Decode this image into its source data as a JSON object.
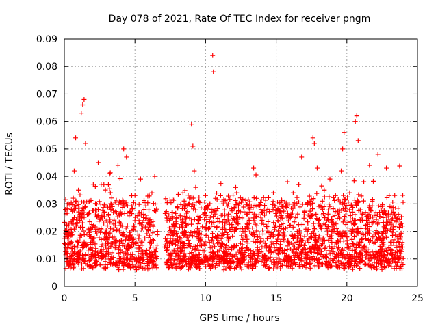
{
  "chart_data": {
    "type": "scatter",
    "title": "Day 078 of 2021, Rate Of TEC Index for receiver pngm",
    "xlabel": "GPS time / hours",
    "ylabel": "ROTI / TECUs",
    "xlim": [
      0,
      25
    ],
    "ylim": [
      0,
      0.09
    ],
    "grid": true,
    "x_ticks": [
      0,
      5,
      10,
      15,
      20,
      25
    ],
    "x_tick_labels": [
      "0",
      "5",
      "10",
      "15",
      "20",
      "25"
    ],
    "y_ticks": [
      0,
      0.01,
      0.02,
      0.03,
      0.04,
      0.05,
      0.06,
      0.07,
      0.08,
      0.09
    ],
    "y_tick_labels": [
      "0",
      "0.01",
      "0.02",
      "0.03",
      "0.04",
      "0.05",
      "0.06",
      "0.07",
      "0.08",
      "0.09"
    ],
    "marker": "+",
    "color": "#ff0000",
    "series": [
      {
        "name": "ROTI",
        "points": [
          [
            0.1,
            0.018
          ],
          [
            0.2,
            0.012
          ],
          [
            0.3,
            0.022
          ],
          [
            0.4,
            0.009
          ],
          [
            0.5,
            0.028
          ],
          [
            0.6,
            0.015
          ],
          [
            0.7,
            0.042
          ],
          [
            0.8,
            0.054
          ],
          [
            0.9,
            0.011
          ],
          [
            1.0,
            0.035
          ],
          [
            1.1,
            0.024
          ],
          [
            1.2,
            0.063
          ],
          [
            1.3,
            0.066
          ],
          [
            1.4,
            0.068
          ],
          [
            1.5,
            0.052
          ],
          [
            1.6,
            0.019
          ],
          [
            1.8,
            0.031
          ],
          [
            2.0,
            0.013
          ],
          [
            2.2,
            0.026
          ],
          [
            2.4,
            0.045
          ],
          [
            2.6,
            0.021
          ],
          [
            2.8,
            0.037
          ],
          [
            3.0,
            0.017
          ],
          [
            3.2,
            0.041
          ],
          [
            3.4,
            0.029
          ],
          [
            3.6,
            0.014
          ],
          [
            3.8,
            0.044
          ],
          [
            4.0,
            0.023
          ],
          [
            4.2,
            0.05
          ],
          [
            4.4,
            0.047
          ],
          [
            4.6,
            0.027
          ],
          [
            4.8,
            0.016
          ],
          [
            5.0,
            0.033
          ],
          [
            5.2,
            0.019
          ],
          [
            5.4,
            0.039
          ],
          [
            5.6,
            0.025
          ],
          [
            5.8,
            0.012
          ],
          [
            6.0,
            0.022
          ],
          [
            6.2,
            0.034
          ],
          [
            6.4,
            0.04
          ],
          [
            7.2,
            0.015
          ],
          [
            7.4,
            0.026
          ],
          [
            7.6,
            0.011
          ],
          [
            7.8,
            0.019
          ],
          [
            8.0,
            0.029
          ],
          [
            8.2,
            0.014
          ],
          [
            8.4,
            0.034
          ],
          [
            8.6,
            0.022
          ],
          [
            8.8,
            0.03
          ],
          [
            9.0,
            0.059
          ],
          [
            9.1,
            0.051
          ],
          [
            9.2,
            0.042
          ],
          [
            9.3,
            0.036
          ],
          [
            9.4,
            0.018
          ],
          [
            9.6,
            0.025
          ],
          [
            9.8,
            0.013
          ],
          [
            10.0,
            0.033
          ],
          [
            10.2,
            0.021
          ],
          [
            10.4,
            0.028
          ],
          [
            10.5,
            0.084
          ],
          [
            10.55,
            0.078
          ],
          [
            10.7,
            0.032
          ],
          [
            10.9,
            0.016
          ],
          [
            11.2,
            0.026
          ],
          [
            11.4,
            0.012
          ],
          [
            11.6,
            0.03
          ],
          [
            11.8,
            0.02
          ],
          [
            12.0,
            0.014
          ],
          [
            12.2,
            0.034
          ],
          [
            12.4,
            0.025
          ],
          [
            12.6,
            0.009
          ],
          [
            12.8,
            0.021
          ],
          [
            13.0,
            0.03
          ],
          [
            13.2,
            0.013
          ],
          [
            13.4,
            0.043
          ],
          [
            13.6,
            0.032
          ],
          [
            13.8,
            0.019
          ],
          [
            14.0,
            0.024
          ],
          [
            14.2,
            0.011
          ],
          [
            14.4,
            0.028
          ],
          [
            14.6,
            0.018
          ],
          [
            14.8,
            0.034
          ],
          [
            15.0,
            0.014
          ],
          [
            15.2,
            0.022
          ],
          [
            15.4,
            0.029
          ],
          [
            15.6,
            0.012
          ],
          [
            15.8,
            0.038
          ],
          [
            16.0,
            0.025
          ],
          [
            16.2,
            0.034
          ],
          [
            16.4,
            0.016
          ],
          [
            16.6,
            0.037
          ],
          [
            16.8,
            0.047
          ],
          [
            17.0,
            0.027
          ],
          [
            17.2,
            0.019
          ],
          [
            17.4,
            0.031
          ],
          [
            17.6,
            0.054
          ],
          [
            17.7,
            0.052
          ],
          [
            17.9,
            0.043
          ],
          [
            18.0,
            0.024
          ],
          [
            18.2,
            0.015
          ],
          [
            18.4,
            0.029
          ],
          [
            18.6,
            0.021
          ],
          [
            18.8,
            0.039
          ],
          [
            19.0,
            0.012
          ],
          [
            19.2,
            0.033
          ],
          [
            19.4,
            0.026
          ],
          [
            19.6,
            0.042
          ],
          [
            19.7,
            0.05
          ],
          [
            19.8,
            0.056
          ],
          [
            20.0,
            0.018
          ],
          [
            20.2,
            0.034
          ],
          [
            20.4,
            0.027
          ],
          [
            20.6,
            0.06
          ],
          [
            20.7,
            0.062
          ],
          [
            20.8,
            0.053
          ],
          [
            21.0,
            0.014
          ],
          [
            21.2,
            0.038
          ],
          [
            21.4,
            0.024
          ],
          [
            21.6,
            0.044
          ],
          [
            21.8,
            0.031
          ],
          [
            22.0,
            0.016
          ],
          [
            22.2,
            0.048
          ],
          [
            22.4,
            0.029
          ],
          [
            22.6,
            0.02
          ],
          [
            22.8,
            0.043
          ],
          [
            23.0,
            0.033
          ],
          [
            23.2,
            0.013
          ],
          [
            23.4,
            0.026
          ],
          [
            23.6,
            0.018
          ],
          [
            23.8,
            0.022
          ]
        ],
        "gaps_hours": [
          [
            6.6,
            7.1
          ],
          [
            24.0,
            25.0
          ]
        ]
      }
    ]
  }
}
